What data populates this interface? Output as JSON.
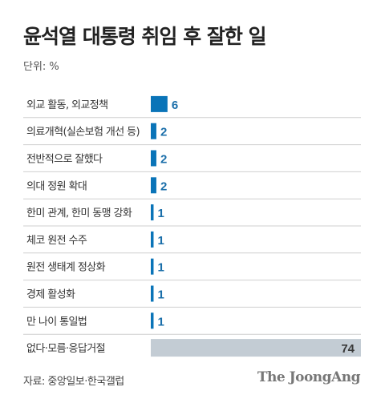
{
  "title": "윤석열 대통령 취임 후 잘한 일",
  "unit": "단위: %",
  "source": "자료: 중앙일보·한국갤럽",
  "brand": "The JoongAng",
  "colors": {
    "bar": "#0a74b8",
    "bar_other": "#c3ccd4",
    "value_label": "#1b6faa",
    "value_label_other": "#3a3a3a",
    "divider": "#cfcfcf"
  },
  "chart_data": {
    "type": "bar",
    "orientation": "horizontal",
    "title": "윤석열 대통령 취임 후 잘한 일",
    "unit": "%",
    "categories": [
      "외교 활동, 외교정책",
      "의료개혁(실손보험 개선 등)",
      "전반적으로 잘했다",
      "의대 정원 확대",
      "한미 관계, 한미 동맹 강화",
      "체코 원전 수주",
      "원전 생태계 정상화",
      "경제 활성화",
      "만 나이 통일법",
      "없다·모름·응답거절"
    ],
    "values": [
      6,
      2,
      2,
      2,
      1,
      1,
      1,
      1,
      1,
      74
    ],
    "grid": false,
    "legend": "none"
  }
}
